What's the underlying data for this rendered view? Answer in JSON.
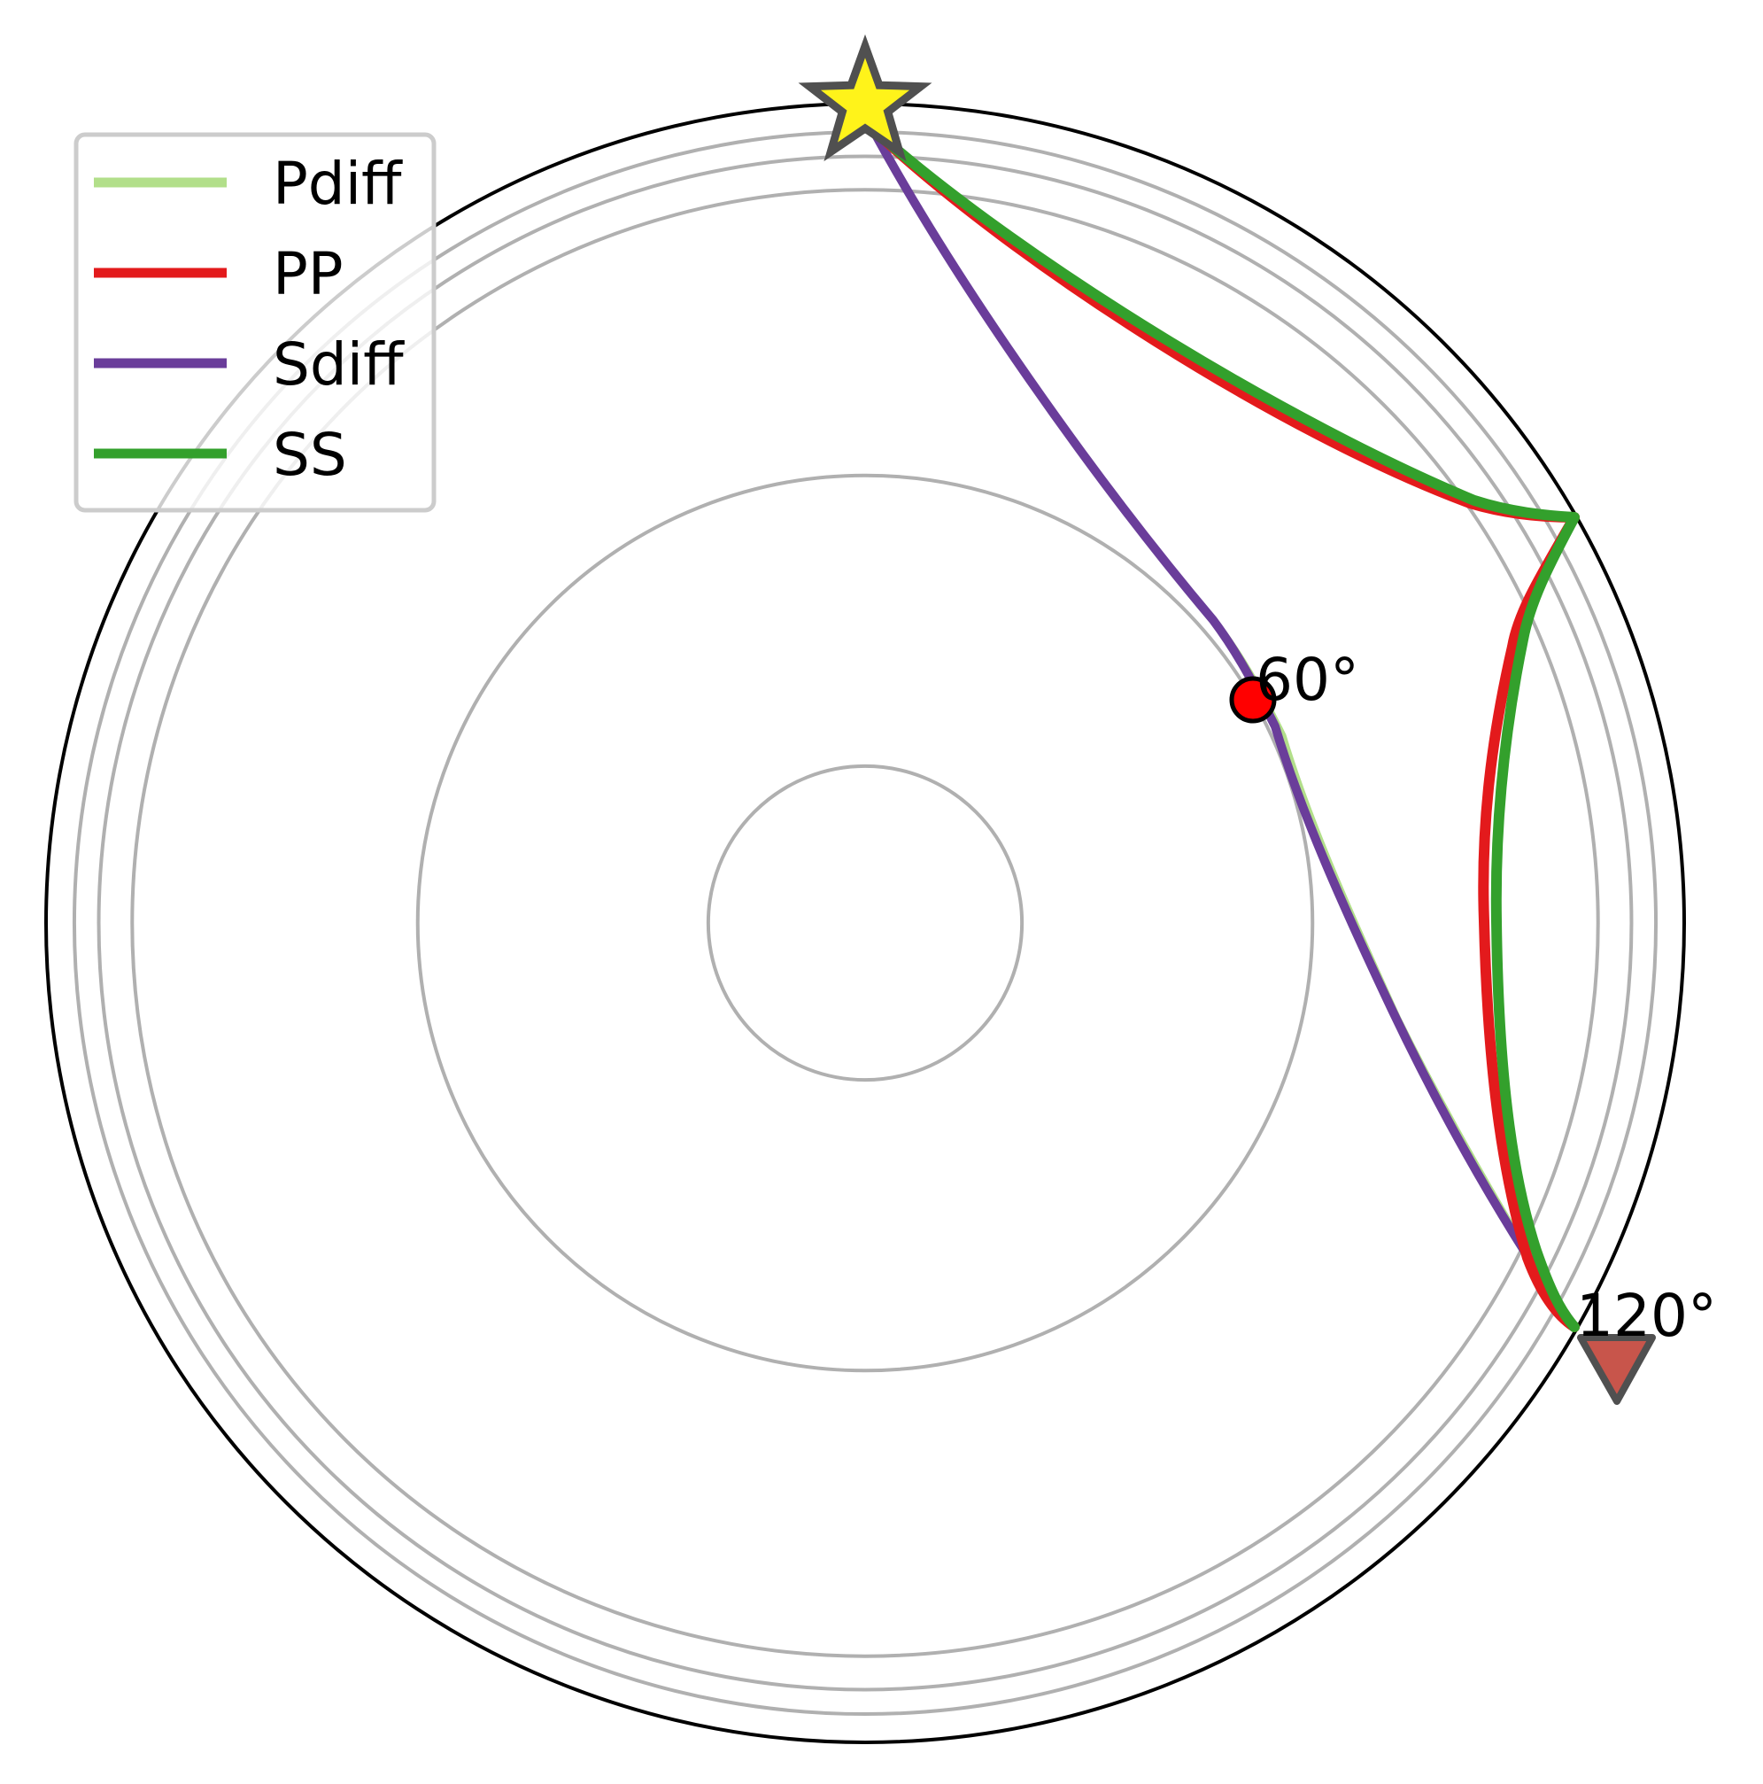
{
  "chart_data": {
    "type": "ray_path",
    "projection": "polar",
    "earth_radius_km": 6371,
    "discontinuity_radii_km": [
      6371,
      6151,
      5961,
      5701,
      3480,
      1220
    ],
    "distance_markers": [
      {
        "label": "60°",
        "degrees": 60
      },
      {
        "label": "120°",
        "degrees": 120
      }
    ],
    "source": {
      "distance_deg": 0,
      "marker": "star",
      "color": "#FFF31A"
    },
    "receiver": {
      "distance_deg": 120,
      "marker": "inverted-triangle",
      "color": "#C8554B"
    },
    "turning_point": {
      "distance_deg": 60,
      "marker": "circle",
      "color": "#FF0000"
    },
    "legend": [
      {
        "name": "Pdiff",
        "color": "#B2DF8A"
      },
      {
        "name": "PP",
        "color": "#E31A1C"
      },
      {
        "name": "Sdiff",
        "color": "#6A3D9A"
      },
      {
        "name": "SS",
        "color": "#33A02C"
      }
    ],
    "series": [
      {
        "name": "Pdiff",
        "color": "#B2DF8A"
      },
      {
        "name": "PP",
        "color": "#E31A1C"
      },
      {
        "name": "Sdiff",
        "color": "#6A3D9A"
      },
      {
        "name": "SS",
        "color": "#33A02C"
      }
    ]
  }
}
